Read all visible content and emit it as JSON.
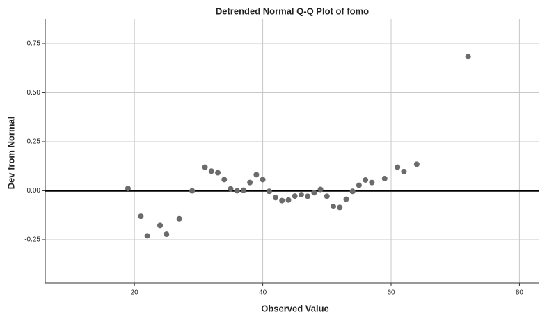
{
  "chart_data": {
    "type": "scatter",
    "title": "Detrended Normal Q-Q Plot of fomo",
    "x_label": "Observed Value",
    "y_label": "Dev from Normal",
    "series": [
      {
        "color": "#6b6b6b",
        "x": [
          19,
          21,
          22,
          24,
          25,
          27,
          29,
          31,
          32,
          33,
          34,
          35,
          36,
          37,
          38,
          39,
          40,
          41,
          42,
          43,
          44,
          45,
          46,
          47,
          48,
          49,
          50,
          51,
          52,
          53,
          54,
          55,
          56,
          57,
          59,
          61,
          62,
          64,
          72
        ],
        "values": [
          0.012,
          -0.13,
          -0.23,
          -0.177,
          -0.222,
          -0.143,
          0,
          0.12,
          0.1,
          0.092,
          0.057,
          0.01,
          0,
          0.003,
          0.042,
          0.082,
          0.057,
          -0.003,
          -0.035,
          -0.05,
          -0.047,
          -0.027,
          -0.02,
          -0.028,
          -0.01,
          0.007,
          -0.028,
          -0.08,
          -0.085,
          -0.043,
          -0.003,
          0.028,
          0.055,
          0.042,
          0.062,
          0.12,
          0.098,
          0.135,
          0.685
        ]
      }
    ],
    "xlim": [
      6.1,
      83.1
    ],
    "xticks": [
      20,
      40,
      60,
      80
    ],
    "ylim": [
      -0.47,
      0.874
    ],
    "yticks": [
      {
        "value": -0.25,
        "label": "-0.25"
      },
      {
        "value": 0,
        "label": "0.00"
      },
      {
        "value": 0.25,
        "label": "0.25"
      },
      {
        "value": 0.5,
        "label": "0.50"
      },
      {
        "value": 0.75,
        "label": "0.75"
      }
    ],
    "reference_line": 0,
    "grid": true
  }
}
